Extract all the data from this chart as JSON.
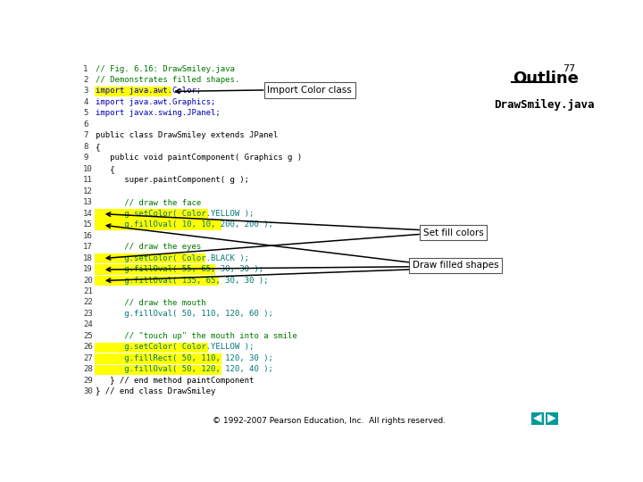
{
  "title_outline": "Outline",
  "title_number": "77",
  "subtitle": "DrawSmiley.java",
  "background_color": "#ffffff",
  "code_lines": [
    {
      "num": "1",
      "text": "// Fig. 6.16: DrawSmiley.java",
      "highlight": null,
      "indent": 0
    },
    {
      "num": "2",
      "text": "// Demonstrates filled shapes.",
      "highlight": null,
      "indent": 0
    },
    {
      "num": "3",
      "text": "import java.awt.Color;",
      "highlight": "yellow",
      "indent": 0
    },
    {
      "num": "4",
      "text": "import java.awt.Graphics;",
      "highlight": null,
      "indent": 0
    },
    {
      "num": "5",
      "text": "import javax.swing.JPanel;",
      "highlight": null,
      "indent": 0
    },
    {
      "num": "6",
      "text": "",
      "highlight": null,
      "indent": 0
    },
    {
      "num": "7",
      "text": "public class DrawSmiley extends JPanel",
      "highlight": null,
      "indent": 0
    },
    {
      "num": "8",
      "text": "{",
      "highlight": null,
      "indent": 0
    },
    {
      "num": "9",
      "text": "   public void paintComponent( Graphics g )",
      "highlight": null,
      "indent": 0
    },
    {
      "num": "10",
      "text": "   {",
      "highlight": null,
      "indent": 0
    },
    {
      "num": "11",
      "text": "      super.paintComponent( g );",
      "highlight": null,
      "indent": 0
    },
    {
      "num": "12",
      "text": "",
      "highlight": null,
      "indent": 0
    },
    {
      "num": "13",
      "text": "      // draw the face",
      "highlight": null,
      "indent": 0
    },
    {
      "num": "14",
      "text": "      g.setColor( Color.YELLOW );",
      "highlight": "yellow",
      "indent": 0
    },
    {
      "num": "15",
      "text": "      g.fillOval( 10, 10, 200, 200 );",
      "highlight": "yellow",
      "indent": 0
    },
    {
      "num": "16",
      "text": "",
      "highlight": null,
      "indent": 0
    },
    {
      "num": "17",
      "text": "      // draw the eyes",
      "highlight": null,
      "indent": 0
    },
    {
      "num": "18",
      "text": "      g.setColor( Color.BLACK );",
      "highlight": "yellow",
      "indent": 0
    },
    {
      "num": "19",
      "text": "      g.fillOval( 55, 65, 30, 30 );",
      "highlight": "yellow",
      "indent": 0
    },
    {
      "num": "20",
      "text": "      g.fillOval( 135, 65, 30, 30 );",
      "highlight": "yellow",
      "indent": 0
    },
    {
      "num": "21",
      "text": "",
      "highlight": null,
      "indent": 0
    },
    {
      "num": "22",
      "text": "      // draw the mouth",
      "highlight": null,
      "indent": 0
    },
    {
      "num": "23",
      "text": "      g.fillOval( 50, 110, 120, 60 );",
      "highlight": null,
      "indent": 0
    },
    {
      "num": "24",
      "text": "",
      "highlight": null,
      "indent": 0
    },
    {
      "num": "25",
      "text": "      // \"touch up\" the mouth into a smile",
      "highlight": null,
      "indent": 0
    },
    {
      "num": "26",
      "text": "      g.setColor( Color.YELLOW );",
      "highlight": "yellow",
      "indent": 0
    },
    {
      "num": "27",
      "text": "      g.fillRect( 50, 110, 120, 30 );",
      "highlight": "yellow",
      "indent": 0
    },
    {
      "num": "28",
      "text": "      g.fillOval( 50, 120, 120, 40 );",
      "highlight": "yellow",
      "indent": 0
    },
    {
      "num": "29",
      "text": "   } // end method paintComponent",
      "highlight": null,
      "indent": 0
    },
    {
      "num": "30",
      "text": "} // end class DrawSmiley",
      "highlight": null,
      "indent": 0
    }
  ],
  "copyright": "© 1992-2007 Pearson Education, Inc.  All rights reserved.",
  "color_comment": "#007700",
  "color_keyword": "#0000BB",
  "color_method": "#007777",
  "color_default": "#000000",
  "color_highlight_bg": "#FFFF00",
  "color_number": "#0000FF"
}
